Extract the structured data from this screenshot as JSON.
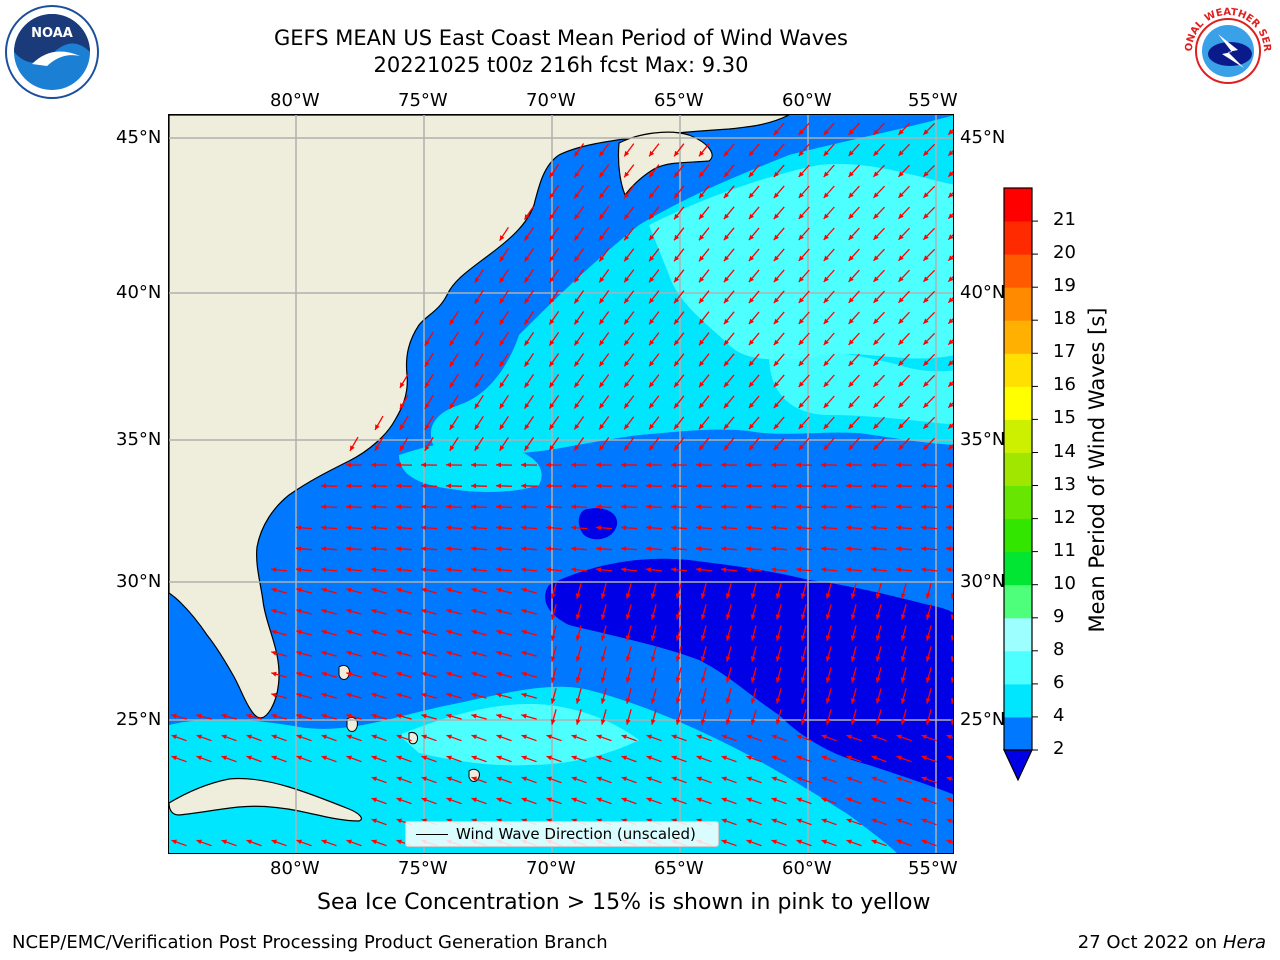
{
  "header": {
    "title_line1": "GEFS MEAN US East Coast Mean Period of Wind Waves",
    "title_line2": "20221025 t00z 216h fcst   Max: 9.30"
  },
  "logos": {
    "left": "NOAA",
    "right": "NATIONAL WEATHER SERVICE"
  },
  "map": {
    "lon_labels": [
      "80°W",
      "75°W",
      "70°W",
      "65°W",
      "60°W",
      "55°W"
    ],
    "lat_labels": [
      "45°N",
      "40°N",
      "35°N",
      "30°N",
      "25°N"
    ],
    "legend_label": "Wind Wave Direction (unscaled)",
    "arrow_color": "#ff0000",
    "land_color": "#efeedc",
    "grid_color": "#b0b0b0"
  },
  "colorbar": {
    "label": "Mean Period of Wind Waves [s]",
    "ticks": [
      "2",
      "4",
      "6",
      "8",
      "9",
      "10",
      "11",
      "12",
      "13",
      "14",
      "15",
      "16",
      "17",
      "18",
      "19",
      "20",
      "21"
    ],
    "colors": [
      "#0078ff",
      "#00e6ff",
      "#4dffff",
      "#9dffff",
      "#4dff7a",
      "#00e633",
      "#33e600",
      "#66e600",
      "#a0e600",
      "#ccf000",
      "#ffff00",
      "#ffe000",
      "#ffb000",
      "#ff8a00",
      "#ff5a00",
      "#ff2a00",
      "#ff0000"
    ],
    "extend_color": "#0000e6"
  },
  "footer": {
    "note": "Sea Ice Concentration > 15% is shown in pink to yellow",
    "credit": "NCEP/EMC/Verification Post Processing Product Generation Branch",
    "date_prefix": "27 Oct 2022 on",
    "date_machine": "Hera"
  }
}
